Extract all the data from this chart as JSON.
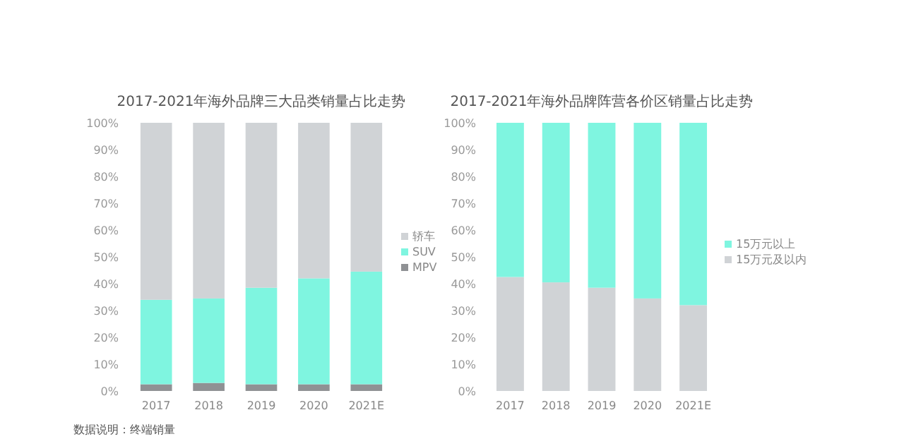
{
  "chart_data": [
    {
      "type": "bar",
      "stacked": true,
      "title": "2017-2021年海外品牌三大品类销量占比走势",
      "categories": [
        "2017",
        "2018",
        "2019",
        "2020",
        "2021E"
      ],
      "ylim": [
        0,
        100
      ],
      "yticks": [
        {
          "value": 0,
          "label": "0%"
        },
        {
          "value": 10,
          "label": "10%"
        },
        {
          "value": 20,
          "label": "20%"
        },
        {
          "value": 30,
          "label": "30%"
        },
        {
          "value": 40,
          "label": "40%"
        },
        {
          "value": 50,
          "label": "50%"
        },
        {
          "value": 60,
          "label": "60%"
        },
        {
          "value": 70,
          "label": "70%"
        },
        {
          "value": 80,
          "label": "80%"
        },
        {
          "value": 90,
          "label": "90%"
        },
        {
          "value": 100,
          "label": "100%"
        }
      ],
      "legend": "right",
      "annotations": [
        "数据说明：终端销量"
      ],
      "series": [
        {
          "name": "MPV",
          "color": "#8f9194",
          "values": [
            2.5,
            3,
            2.5,
            2.5,
            2.5
          ]
        },
        {
          "name": "SUV",
          "color": "#7ff5e0",
          "values": [
            31.5,
            31.5,
            36,
            39.5,
            42
          ]
        },
        {
          "name": "轿车",
          "color": "#d0d3d6",
          "values": [
            66,
            65.5,
            61.5,
            58,
            55.5
          ]
        }
      ]
    },
    {
      "type": "bar",
      "stacked": true,
      "title": "2017-2021年海外品牌阵营各价区销量占比走势",
      "categories": [
        "2017",
        "2018",
        "2019",
        "2020",
        "2021E"
      ],
      "ylim": [
        0,
        100
      ],
      "yticks": [
        {
          "value": 0,
          "label": "0%"
        },
        {
          "value": 10,
          "label": "10%"
        },
        {
          "value": 20,
          "label": "20%"
        },
        {
          "value": 30,
          "label": "30%"
        },
        {
          "value": 40,
          "label": "40%"
        },
        {
          "value": 50,
          "label": "50%"
        },
        {
          "value": 60,
          "label": "60%"
        },
        {
          "value": 70,
          "label": "70%"
        },
        {
          "value": 80,
          "label": "80%"
        },
        {
          "value": 90,
          "label": "90%"
        },
        {
          "value": 100,
          "label": "100%"
        }
      ],
      "legend": "right",
      "series": [
        {
          "name": "15万元及以内",
          "color": "#d0d3d6",
          "values": [
            42.5,
            40.5,
            38.5,
            34.5,
            32
          ]
        },
        {
          "name": "15万元以上",
          "color": "#7ff5e0",
          "values": [
            57.5,
            59.5,
            61.5,
            65.5,
            68
          ]
        }
      ]
    }
  ]
}
